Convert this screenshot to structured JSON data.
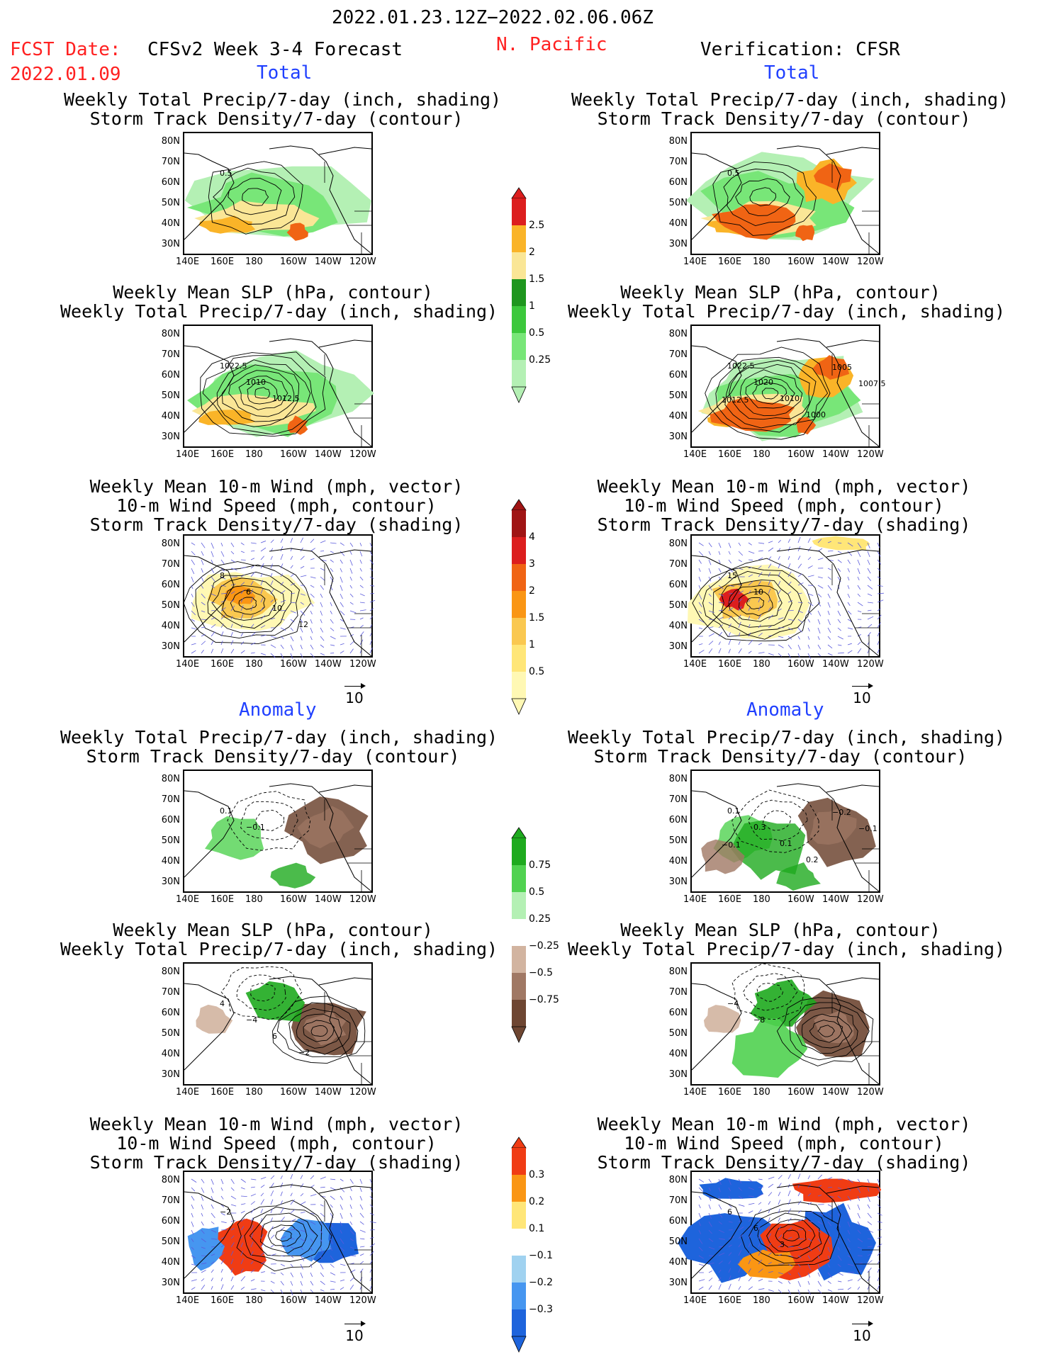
{
  "header": {
    "date_range": "2022.01.23.12Z−2022.02.06.06Z",
    "fcst_label": "FCST Date:",
    "fcst_date": "2022.01.09",
    "model_title": "CFSv2 Week 3-4 Forecast",
    "region": "N. Pacific",
    "verification": "Verification: CFSR"
  },
  "sections": {
    "total_left": "Total",
    "total_right": "Total",
    "anomaly_left": "Anomaly",
    "anomaly_right": "Anomaly"
  },
  "panel_titles": {
    "precip_storm": [
      "Weekly Total Precip/7-day (inch, shading)",
      "Storm Track Density/7-day (contour)"
    ],
    "slp_precip": [
      "Weekly Mean SLP (hPa, contour)",
      "Weekly Total Precip/7-day (inch, shading)"
    ],
    "wind_storm": [
      "Weekly Mean 10-m Wind (mph, vector)",
      "10-m Wind Speed (mph, contour)",
      "Storm Track Density/7-day (shading)"
    ]
  },
  "axes": {
    "lat_labels": [
      "80N",
      "70N",
      "60N",
      "50N",
      "40N",
      "30N"
    ],
    "lon_labels": [
      "140E",
      "160E",
      "180",
      "160W",
      "140W",
      "120W"
    ]
  },
  "vector_ref": "10",
  "colorbars": {
    "precip_total": [
      "2.5",
      "2",
      "1.5",
      "1",
      "0.5",
      "0.25"
    ],
    "storm_total": [
      "4",
      "3",
      "2",
      "1.5",
      "1",
      "0.5"
    ],
    "precip_anom": [
      "0.75",
      "0.5",
      "0.25",
      "−0.25",
      "−0.5",
      "−0.75"
    ],
    "storm_anom": [
      "0.3",
      "0.2",
      "0.1",
      "−0.1",
      "−0.2",
      "−0.3"
    ]
  },
  "panel_labels": {
    "fc_precip": [
      "0.5"
    ],
    "ob_precip": [
      "0.5"
    ],
    "fc_slp": [
      "1022.5",
      "1010",
      "1012.5"
    ],
    "ob_slp": [
      "1022.5",
      "1020",
      "1010",
      "1000",
      "1005",
      "1007.5",
      "1012.5"
    ],
    "fc_wind": [
      "8",
      "6",
      "10",
      "12"
    ],
    "ob_wind": [
      "15",
      "10"
    ],
    "fc_precip_anom": [
      "0.1",
      "−0.1"
    ],
    "ob_precip_anom": [
      "0.1",
      "0.3",
      "0.1",
      "0.2",
      "−0.2",
      "−0.1",
      "−0.1"
    ],
    "fc_slp_anom": [
      "4",
      "−4",
      "6",
      "−2"
    ],
    "ob_slp_anom": [
      "−4",
      "−8"
    ],
    "fc_wind_anom": [
      "−2"
    ],
    "ob_wind_anom": [
      "6",
      "6",
      "3"
    ]
  },
  "colors": {
    "red_text": "#ff2020",
    "blue_text": "#2040ff",
    "precip": [
      "#b4f0b4",
      "#78e678",
      "#3cc83c",
      "#1e961e",
      "#fae696",
      "#fab428",
      "#f06414",
      "#dc1e1e"
    ],
    "storm": [
      "#fff8b4",
      "#ffe678",
      "#fac850",
      "#fa9614",
      "#f06414",
      "#dc1e1e",
      "#a01414"
    ],
    "anom_precip": [
      "#6e4632",
      "#a07864",
      "#d2b4a0",
      "#ffffff",
      "#b4f0b4",
      "#50d250",
      "#1eaa1e"
    ],
    "anom_storm": [
      "#1e64dc",
      "#4696f0",
      "#a0d2f0",
      "#ffffff",
      "#ffe678",
      "#fa9614",
      "#f03c14"
    ]
  }
}
